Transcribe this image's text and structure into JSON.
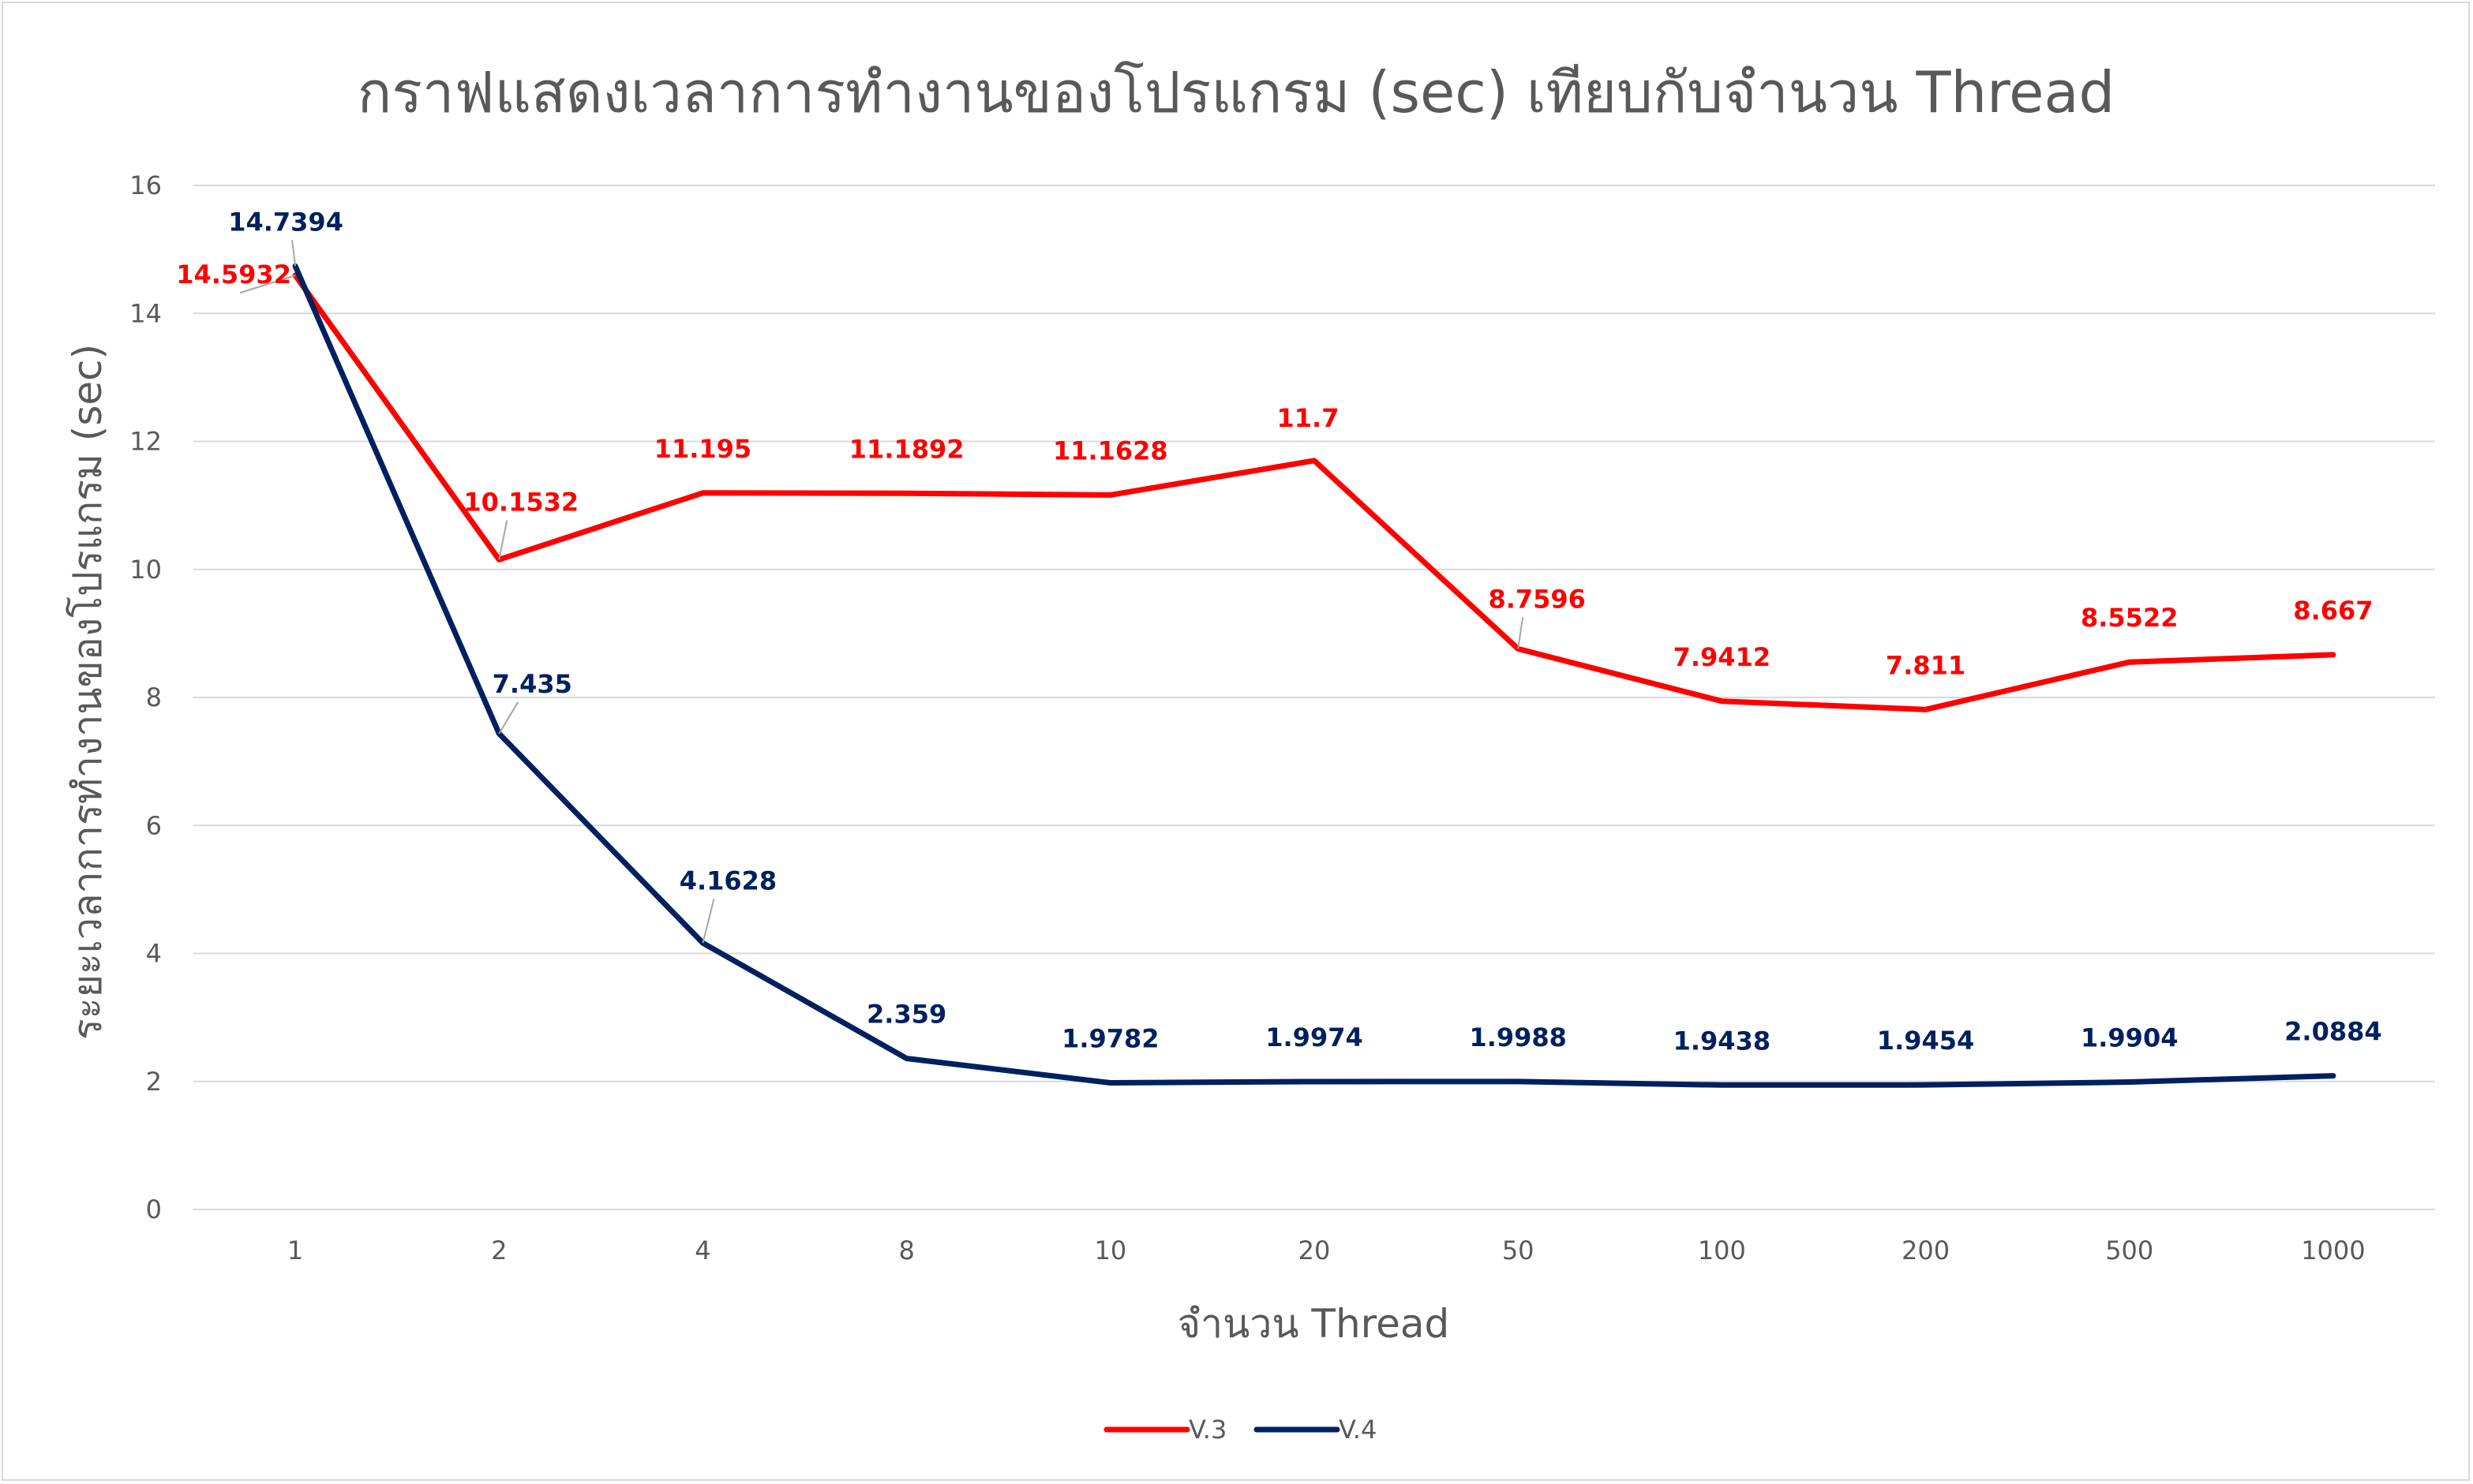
{
  "chart_data": {
    "type": "line",
    "title": "กราฟแสดงเวลาการทำงานของโปรแกรม (sec) เทียบกับจำนวน Thread",
    "xlabel": "จำนวน Thread",
    "ylabel": "ระยะเวลาการทำงานของโปรแกรม (sec)",
    "categories": [
      "1",
      "2",
      "4",
      "8",
      "10",
      "20",
      "50",
      "100",
      "200",
      "500",
      "1000"
    ],
    "ylim": [
      0,
      16
    ],
    "yticks": [
      0,
      2,
      4,
      6,
      8,
      10,
      12,
      14,
      16
    ],
    "grid": true,
    "legend_position": "bottom",
    "series": [
      {
        "name": "V.3",
        "color": "#ff0000",
        "values": [
          14.5932,
          10.1532,
          11.195,
          11.1892,
          11.1628,
          11.7,
          8.7596,
          7.9412,
          7.811,
          8.5522,
          8.667
        ],
        "labels": [
          "14.5932",
          "10.1532",
          "11.195",
          "11.1892",
          "11.1628",
          "11.7",
          "8.7596",
          "7.9412",
          "7.811",
          "8.5522",
          "8.667"
        ]
      },
      {
        "name": "V.4",
        "color": "#002060",
        "values": [
          14.7394,
          7.435,
          4.1628,
          2.359,
          1.9782,
          1.9974,
          1.9988,
          1.9438,
          1.9454,
          1.9904,
          2.0884
        ],
        "labels": [
          "14.7394",
          "7.435",
          "4.1628",
          "2.359",
          "1.9782",
          "1.9974",
          "1.9988",
          "1.9438",
          "1.9454",
          "1.9904",
          "2.0884"
        ]
      }
    ]
  }
}
